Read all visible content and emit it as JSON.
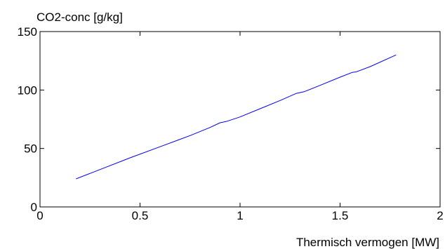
{
  "chart_data": {
    "type": "line",
    "title": "",
    "ylabel": "CO2-conc [g/kg]",
    "xlabel": "Thermisch vermogen [MW]",
    "xlim": [
      0,
      2
    ],
    "ylim": [
      0,
      150
    ],
    "xticks": [
      0,
      0.5,
      1,
      1.5,
      2
    ],
    "xtick_labels": [
      "0",
      "0.5",
      "1",
      "1.5",
      "2"
    ],
    "yticks": [
      0,
      50,
      100,
      150
    ],
    "ytick_labels": [
      "0",
      "50",
      "100",
      "150"
    ],
    "grid": false,
    "legend": "none",
    "series": [
      {
        "color": "#0000ff",
        "x": [
          0.18,
          0.3,
          0.45,
          0.6,
          0.75,
          0.85,
          0.9,
          0.93,
          1.0,
          1.1,
          1.2,
          1.28,
          1.32,
          1.4,
          1.5,
          1.56,
          1.58,
          1.65,
          1.78
        ],
        "y": [
          24,
          32,
          42,
          51.5,
          61,
          68,
          72,
          73,
          77,
          84,
          91,
          97,
          98.5,
          104,
          111,
          115,
          115.5,
          120,
          130
        ]
      }
    ]
  }
}
